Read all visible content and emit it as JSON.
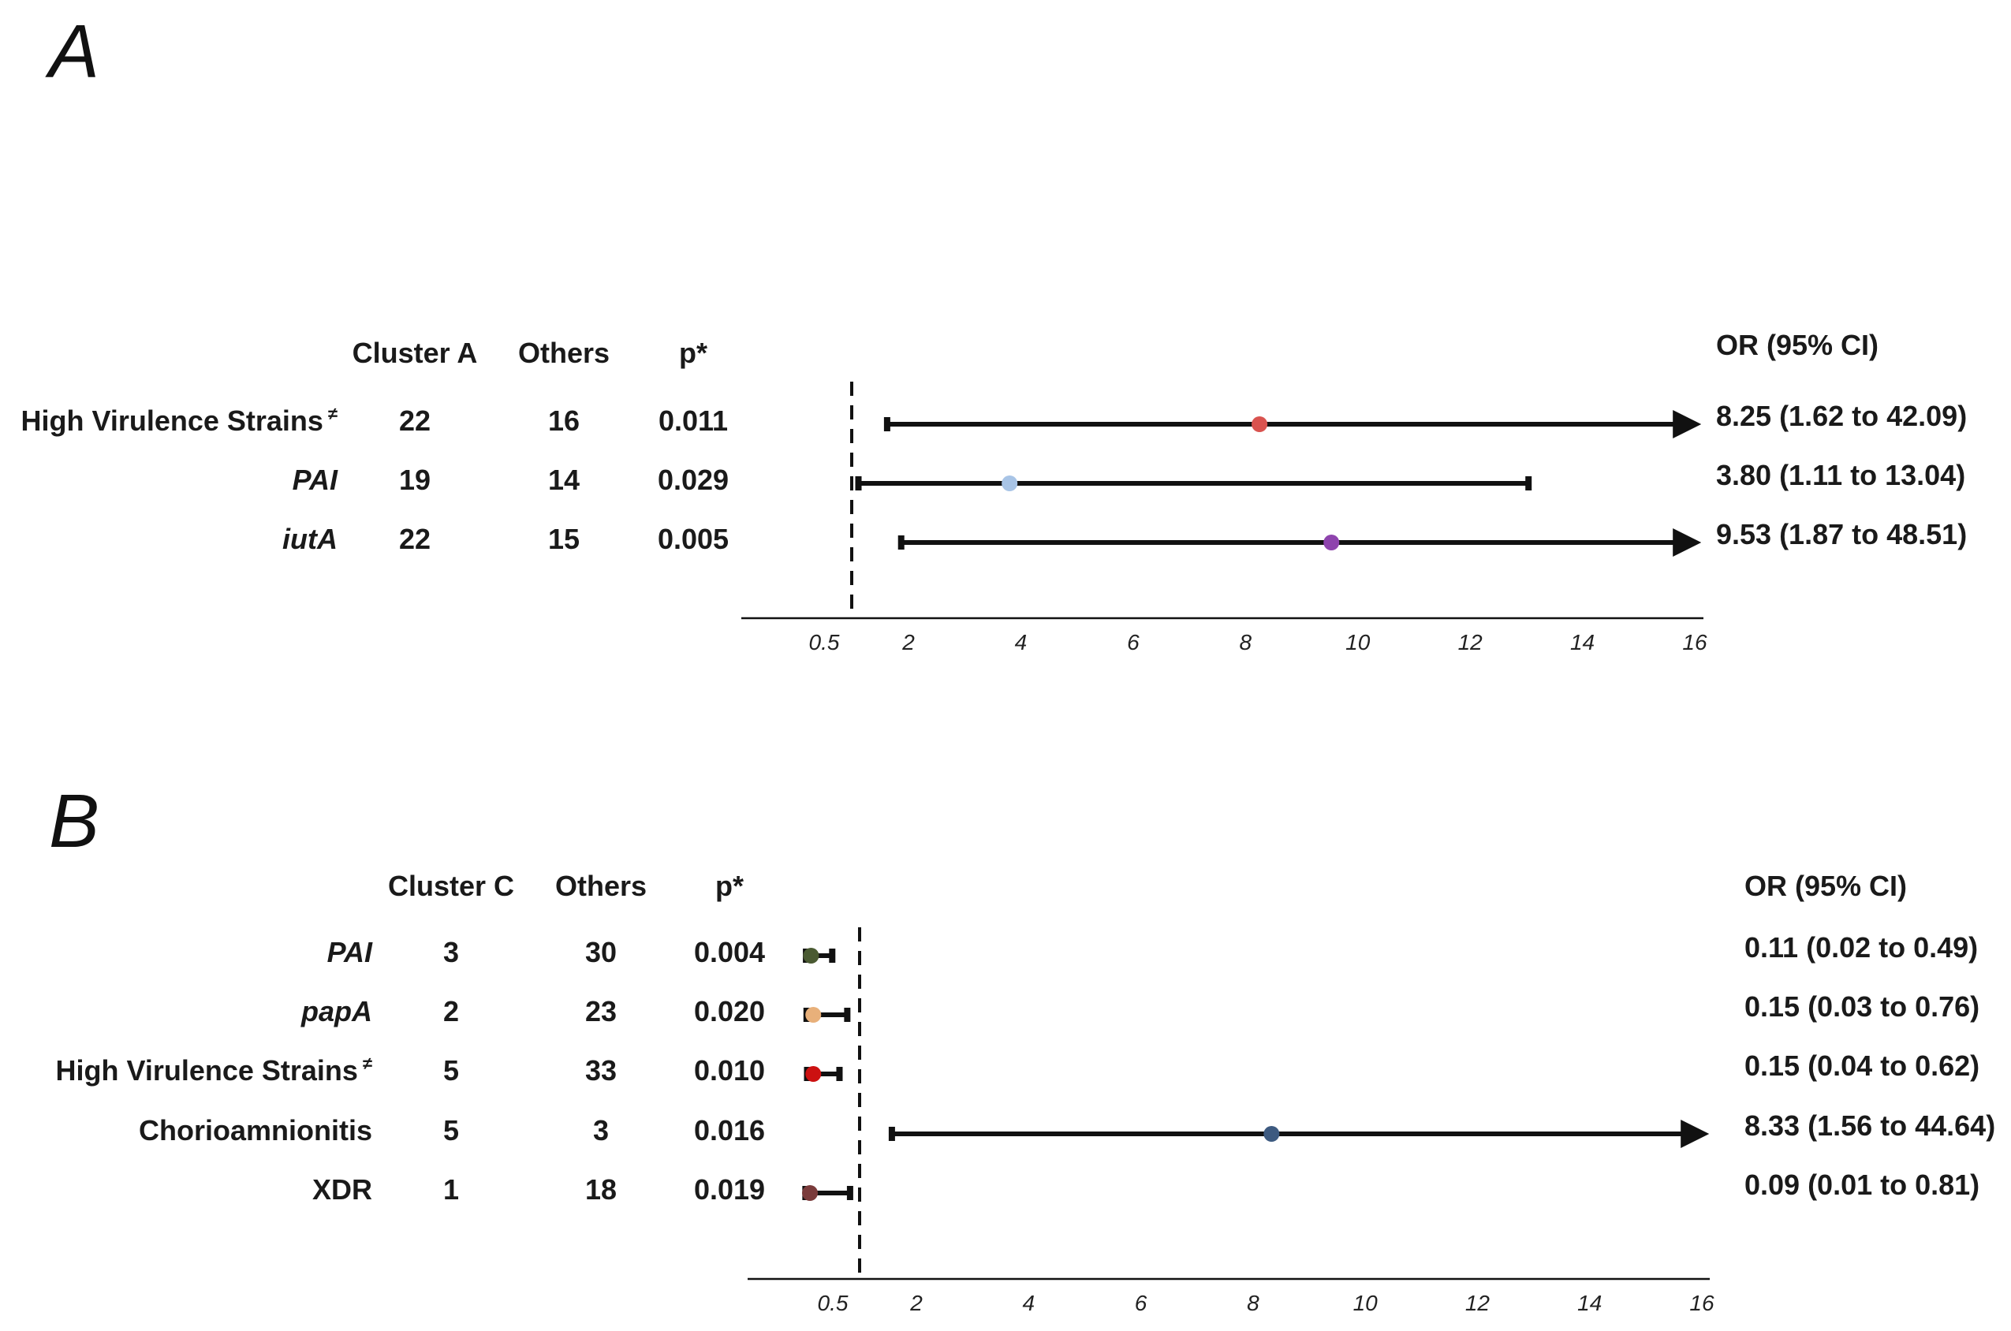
{
  "chart_data": [
    {
      "type": "forest",
      "panel": "A",
      "columns": [
        "Cluster A",
        "Others",
        "p*"
      ],
      "or_header": "OR (95% CI)",
      "axis": {
        "ticks": [
          0.5,
          2,
          4,
          6,
          8,
          10,
          12,
          14,
          16
        ],
        "reference_line": 1,
        "xlim": [
          -2,
          16
        ]
      },
      "rows": [
        {
          "label": "High Virulence Strains",
          "sup": "≠",
          "italic": false,
          "group": "22",
          "others": "16",
          "p": "0.011",
          "or": 8.25,
          "lo": 1.62,
          "hi": 42.09,
          "or_text": "8.25 (1.62 to 42.09)",
          "color": "#d9534f"
        },
        {
          "label": "PAI",
          "sup": "",
          "italic": true,
          "group": "19",
          "others": "14",
          "p": "0.029",
          "or": 3.8,
          "lo": 1.11,
          "hi": 13.04,
          "or_text": "3.80 (1.11 to 13.04)",
          "color": "#a8c4e6"
        },
        {
          "label": "iutA",
          "sup": "",
          "italic": true,
          "group": "22",
          "others": "15",
          "p": "0.005",
          "or": 9.53,
          "lo": 1.87,
          "hi": 48.51,
          "or_text": "9.53 (1.87 to 48.51)",
          "color": "#8e44ad"
        }
      ]
    },
    {
      "type": "forest",
      "panel": "B",
      "columns": [
        "Cluster C",
        "Others",
        "p*"
      ],
      "or_header": "OR (95% CI)",
      "axis": {
        "ticks": [
          0.5,
          2,
          4,
          6,
          8,
          10,
          12,
          14,
          16
        ],
        "reference_line": 1,
        "xlim": [
          -2,
          16
        ]
      },
      "rows": [
        {
          "label": "PAI",
          "sup": "",
          "italic": true,
          "group": "3",
          "others": "30",
          "p": "0.004",
          "or": 0.11,
          "lo": 0.02,
          "hi": 0.49,
          "or_text": "0.11 (0.02 to 0.49)",
          "color": "#4a5a32"
        },
        {
          "label": "papA",
          "sup": "",
          "italic": true,
          "group": "2",
          "others": "23",
          "p": "0.020",
          "or": 0.15,
          "lo": 0.03,
          "hi": 0.76,
          "or_text": "0.15 (0.03 to 0.76)",
          "color": "#e8b07a"
        },
        {
          "label": "High Virulence Strains",
          "sup": "≠",
          "italic": false,
          "group": "5",
          "others": "33",
          "p": "0.010",
          "or": 0.15,
          "lo": 0.04,
          "hi": 0.62,
          "or_text": "0.15 (0.04 to 0.62)",
          "color": "#cc1111"
        },
        {
          "label": "Chorioamnionitis",
          "sup": "",
          "italic": false,
          "group": "5",
          "others": "3",
          "p": "0.016",
          "or": 8.33,
          "lo": 1.56,
          "hi": 44.64,
          "or_text": "8.33 (1.56 to 44.64)",
          "color": "#3d5a80"
        },
        {
          "label": "XDR",
          "sup": "",
          "italic": false,
          "group": "1",
          "others": "18",
          "p": "0.019",
          "or": 0.09,
          "lo": 0.01,
          "hi": 0.81,
          "or_text": "0.09  (0.01 to 0.81)",
          "color": "#7a3b3b"
        }
      ]
    }
  ]
}
